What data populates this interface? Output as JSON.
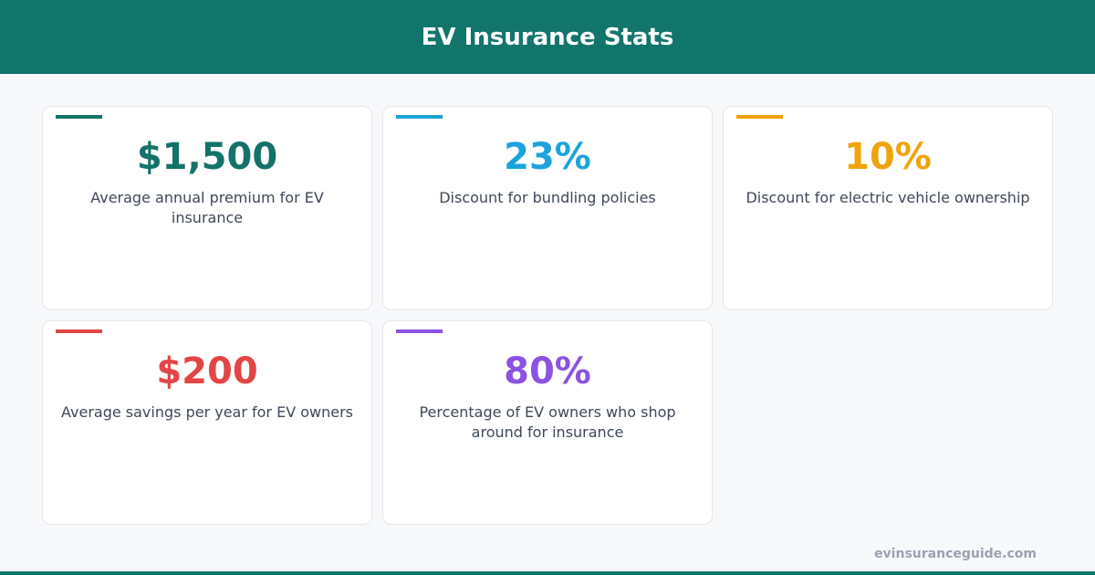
{
  "header": {
    "title": "EV Insurance Stats"
  },
  "cards": [
    {
      "value": "$1,500",
      "description": "Average annual premium for EV insurance",
      "color": "#137369"
    },
    {
      "value": "23%",
      "description": "Discount for bundling policies",
      "color": "#1ba3dc"
    },
    {
      "value": "10%",
      "description": "Discount for electric vehicle ownership",
      "color": "#f0a30d"
    },
    {
      "value": "$200",
      "description": "Average savings per year for EV owners",
      "color": "#e34545"
    },
    {
      "value": "80%",
      "description": "Percentage of EV owners who shop around for insurance",
      "color": "#8b52e2"
    }
  ],
  "footer": {
    "site": "evinsuranceguide.com"
  }
}
